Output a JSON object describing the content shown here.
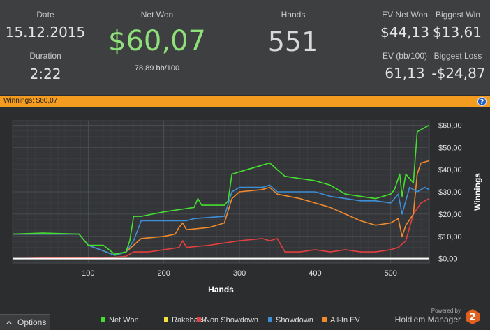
{
  "stats": {
    "date_label": "Date",
    "date_value": "15.12.2015",
    "duration_label": "Duration",
    "duration_value": "2:22",
    "net_won_label": "Net Won",
    "net_won_value": "$60,07",
    "net_won_sub": "78,89 bb/100",
    "hands_label": "Hands",
    "hands_value": "551",
    "ev_net_won_label": "EV Net Won",
    "ev_net_won_value": "$44,13",
    "biggest_win_label": "Biggest Win",
    "biggest_win_value": "$13,61",
    "ev_bb_label": "EV (bb/100)",
    "ev_bb_value": "61,13",
    "biggest_loss_label": "Biggest Loss",
    "biggest_loss_value": "-$24,87"
  },
  "banner": {
    "text": "Winnings:  $60,07",
    "help": "?"
  },
  "footer": {
    "options_label": "Options",
    "options_icon": "chevron-up-icon",
    "powered_by": "Powered by",
    "product": "Hold'em Manager",
    "product_badge": "2"
  },
  "colors": {
    "net_won": "#44e02f",
    "rakeback": "#f2e43a",
    "non_showdown": "#e24040",
    "showdown": "#3d8fd8",
    "all_in_ev": "#f08a2c",
    "net_won_big": "#8fe07a",
    "banner": "#f39c1f"
  },
  "chart_data": {
    "type": "line",
    "xlabel": "Hands",
    "ylabel": "Winnings",
    "xlim": [
      0,
      551
    ],
    "ylim": [
      -2,
      62
    ],
    "x_ticks": [
      100,
      200,
      300,
      400,
      500
    ],
    "y_ticks": [
      0,
      10,
      20,
      30,
      40,
      50,
      60
    ],
    "y_tick_labels": [
      "$0,00",
      "$10,00",
      "$20,00",
      "$30,00",
      "$40,00",
      "$50,00",
      "$60,00"
    ],
    "grid": true,
    "legend_position": "bottom",
    "series": [
      {
        "name": "Net Won",
        "color": "#44e02f",
        "points": [
          [
            0,
            11
          ],
          [
            40,
            11.5
          ],
          [
            88,
            11
          ],
          [
            100,
            6
          ],
          [
            120,
            6
          ],
          [
            135,
            2
          ],
          [
            150,
            3
          ],
          [
            155,
            8
          ],
          [
            160,
            19
          ],
          [
            170,
            19
          ],
          [
            185,
            20
          ],
          [
            200,
            21
          ],
          [
            220,
            22
          ],
          [
            240,
            23
          ],
          [
            245,
            27
          ],
          [
            250,
            24
          ],
          [
            280,
            24
          ],
          [
            285,
            26
          ],
          [
            290,
            38
          ],
          [
            300,
            39
          ],
          [
            330,
            42
          ],
          [
            340,
            43
          ],
          [
            350,
            40
          ],
          [
            360,
            37
          ],
          [
            380,
            36
          ],
          [
            400,
            35
          ],
          [
            420,
            33
          ],
          [
            440,
            29
          ],
          [
            460,
            28
          ],
          [
            480,
            27
          ],
          [
            500,
            29
          ],
          [
            505,
            31
          ],
          [
            512,
            38
          ],
          [
            515,
            28
          ],
          [
            520,
            38
          ],
          [
            530,
            34
          ],
          [
            535,
            57
          ],
          [
            540,
            58
          ],
          [
            551,
            60
          ]
        ]
      },
      {
        "name": "Rakeback",
        "color": "#f2e43a",
        "points": [
          [
            0,
            0
          ],
          [
            551,
            0
          ]
        ]
      },
      {
        "name": "Non Showdown",
        "color": "#e24040",
        "points": [
          [
            0,
            0
          ],
          [
            80,
            0.5
          ],
          [
            120,
            0.2
          ],
          [
            150,
            1
          ],
          [
            160,
            3
          ],
          [
            180,
            3
          ],
          [
            200,
            4
          ],
          [
            220,
            5
          ],
          [
            225,
            8
          ],
          [
            230,
            5
          ],
          [
            260,
            6
          ],
          [
            280,
            7
          ],
          [
            300,
            8
          ],
          [
            330,
            9
          ],
          [
            340,
            8
          ],
          [
            350,
            9
          ],
          [
            360,
            3
          ],
          [
            380,
            3
          ],
          [
            400,
            4
          ],
          [
            420,
            3
          ],
          [
            440,
            4
          ],
          [
            460,
            3
          ],
          [
            480,
            3
          ],
          [
            500,
            4
          ],
          [
            510,
            5
          ],
          [
            520,
            8
          ],
          [
            530,
            20
          ],
          [
            540,
            25
          ],
          [
            551,
            27
          ]
        ]
      },
      {
        "name": "Showdown",
        "color": "#3d8fd8",
        "points": [
          [
            0,
            11
          ],
          [
            88,
            11
          ],
          [
            100,
            6
          ],
          [
            135,
            1.5
          ],
          [
            150,
            3
          ],
          [
            160,
            8
          ],
          [
            170,
            17
          ],
          [
            200,
            17
          ],
          [
            230,
            17
          ],
          [
            240,
            18
          ],
          [
            280,
            19
          ],
          [
            290,
            30
          ],
          [
            300,
            32
          ],
          [
            330,
            32
          ],
          [
            340,
            33
          ],
          [
            350,
            30
          ],
          [
            380,
            30
          ],
          [
            400,
            30
          ],
          [
            420,
            28
          ],
          [
            440,
            27
          ],
          [
            460,
            26
          ],
          [
            480,
            26
          ],
          [
            500,
            25
          ],
          [
            510,
            29
          ],
          [
            515,
            20
          ],
          [
            525,
            32
          ],
          [
            535,
            30
          ],
          [
            545,
            32
          ],
          [
            551,
            31
          ]
        ]
      },
      {
        "name": "All-In EV",
        "color": "#f08a2c",
        "points": [
          [
            0,
            11
          ],
          [
            88,
            11
          ],
          [
            100,
            6
          ],
          [
            135,
            1.5
          ],
          [
            150,
            3
          ],
          [
            160,
            6
          ],
          [
            170,
            9
          ],
          [
            200,
            10
          ],
          [
            215,
            11
          ],
          [
            220,
            14
          ],
          [
            225,
            16
          ],
          [
            230,
            13
          ],
          [
            260,
            14
          ],
          [
            280,
            16
          ],
          [
            290,
            27
          ],
          [
            300,
            30
          ],
          [
            330,
            31
          ],
          [
            340,
            32
          ],
          [
            350,
            29
          ],
          [
            380,
            27
          ],
          [
            400,
            25
          ],
          [
            420,
            23
          ],
          [
            440,
            20
          ],
          [
            460,
            17
          ],
          [
            480,
            15
          ],
          [
            500,
            16
          ],
          [
            510,
            18
          ],
          [
            515,
            10
          ],
          [
            520,
            15
          ],
          [
            530,
            20
          ],
          [
            535,
            38
          ],
          [
            540,
            43
          ],
          [
            551,
            44
          ]
        ]
      }
    ]
  }
}
